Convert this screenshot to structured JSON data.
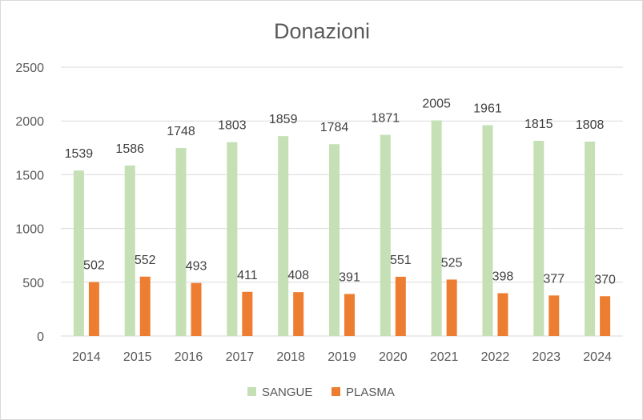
{
  "chart_data": {
    "type": "bar",
    "title": "Donazioni",
    "xlabel": "",
    "ylabel": "",
    "categories": [
      "2014",
      "2015",
      "2016",
      "2017",
      "2018",
      "2019",
      "2020",
      "2021",
      "2022",
      "2023",
      "2024"
    ],
    "series": [
      {
        "name": "SANGUE",
        "color": "#c5e0b4",
        "values": [
          1539,
          1586,
          1748,
          1803,
          1859,
          1784,
          1871,
          2005,
          1961,
          1815,
          1808
        ]
      },
      {
        "name": "PLASMA",
        "color": "#ed7d31",
        "values": [
          502,
          552,
          493,
          411,
          408,
          391,
          551,
          525,
          398,
          377,
          370
        ]
      }
    ],
    "ylim": [
      0,
      2500
    ],
    "yticks": [
      0,
      500,
      1000,
      1500,
      2000,
      2500
    ],
    "grid": true,
    "legend_position": "bottom"
  }
}
